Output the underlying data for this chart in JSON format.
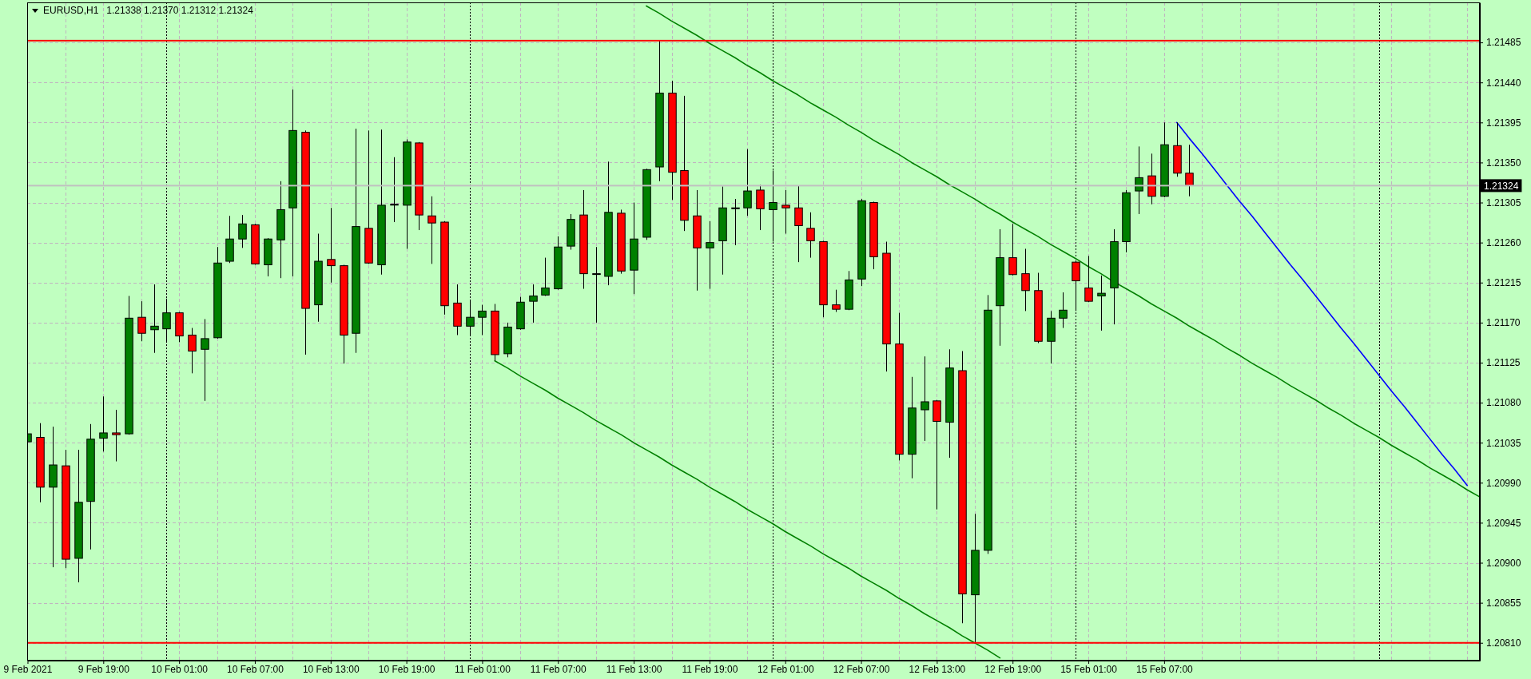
{
  "chart_data": {
    "type": "candlestick",
    "title": "EURUSD,H1",
    "subtitle": "1.21338 1.21370 1.21312 1.21324",
    "categories": [
      "9 Feb 2021",
      null,
      null,
      null,
      null,
      null,
      "9 Feb 19:00",
      null,
      null,
      null,
      null,
      null,
      "10 Feb 01:00",
      null,
      null,
      null,
      null,
      null,
      "10 Feb 07:00",
      null,
      null,
      null,
      null,
      null,
      "10 Feb 13:00",
      null,
      null,
      null,
      null,
      null,
      "10 Feb 19:00",
      null,
      null,
      null,
      null,
      null,
      "11 Feb 01:00",
      null,
      null,
      null,
      null,
      null,
      "11 Feb 07:00",
      null,
      null,
      null,
      null,
      null,
      "11 Feb 13:00",
      null,
      null,
      null,
      null,
      null,
      "11 Feb 19:00",
      null,
      null,
      null,
      null,
      null,
      "12 Feb 01:00",
      null,
      null,
      null,
      null,
      null,
      "12 Feb 07:00",
      null,
      null,
      null,
      null,
      null,
      "12 Feb 13:00",
      null,
      null,
      null,
      null,
      null,
      "12 Feb 19:00",
      null,
      null,
      null,
      null,
      null,
      "15 Feb 01:00",
      null,
      null,
      null,
      null,
      null,
      "15 Feb 07:00",
      null,
      null,
      null,
      null,
      null,
      null,
      null,
      null,
      null,
      null,
      null,
      null,
      null,
      null,
      null,
      null,
      null,
      null,
      null,
      null,
      null,
      null,
      null,
      null,
      null
    ],
    "ohlc": [
      [
        1.21036,
        1.21064,
        1.20972,
        1.21045
      ],
      [
        1.21041,
        1.21057,
        1.20968,
        1.20985
      ],
      [
        1.20985,
        1.21053,
        1.20895,
        1.2101
      ],
      [
        1.21009,
        1.21027,
        1.20894,
        1.20904
      ],
      [
        1.20905,
        1.21027,
        1.20878,
        1.20968
      ],
      [
        1.20969,
        1.21056,
        1.20915,
        1.21039
      ],
      [
        1.2104,
        1.21087,
        1.21025,
        1.21046
      ],
      [
        1.21046,
        1.21072,
        1.21014,
        1.21044
      ],
      [
        1.21045,
        1.212,
        1.21044,
        1.21175
      ],
      [
        1.21176,
        1.21194,
        1.21149,
        1.21158
      ],
      [
        1.21162,
        1.21213,
        1.21136,
        1.21166
      ],
      [
        1.21163,
        1.21197,
        1.21149,
        1.21181
      ],
      [
        1.21181,
        1.21182,
        1.21148,
        1.21155
      ],
      [
        1.21156,
        1.21164,
        1.21113,
        1.21138
      ],
      [
        1.2114,
        1.21174,
        1.21082,
        1.21152
      ],
      [
        1.21153,
        1.21255,
        1.21152,
        1.21237
      ],
      [
        1.21239,
        1.2129,
        1.21237,
        1.21264
      ],
      [
        1.21264,
        1.21291,
        1.21254,
        1.21281
      ],
      [
        1.2128,
        1.21281,
        1.21235,
        1.21236
      ],
      [
        1.21235,
        1.21265,
        1.21222,
        1.21264
      ],
      [
        1.21263,
        1.21329,
        1.2122,
        1.21297
      ],
      [
        1.21299,
        1.21432,
        1.21222,
        1.21386
      ],
      [
        1.21384,
        1.21386,
        1.21134,
        1.21186
      ],
      [
        1.2119,
        1.2127,
        1.21171,
        1.21239
      ],
      [
        1.21241,
        1.21299,
        1.21215,
        1.21234
      ],
      [
        1.21234,
        1.21235,
        1.21124,
        1.21156
      ],
      [
        1.21158,
        1.21388,
        1.21136,
        1.21278
      ],
      [
        1.21276,
        1.21386,
        1.21236,
        1.21237
      ],
      [
        1.21235,
        1.21387,
        1.21224,
        1.21302
      ],
      [
        1.21303,
        1.21356,
        1.21283,
        1.21303
      ],
      [
        1.21302,
        1.21376,
        1.21253,
        1.21373
      ],
      [
        1.21372,
        1.21373,
        1.21274,
        1.21291
      ],
      [
        1.2129,
        1.21312,
        1.21236,
        1.21282
      ],
      [
        1.21283,
        1.21284,
        1.21179,
        1.21189
      ],
      [
        1.21192,
        1.21213,
        1.21156,
        1.21166
      ],
      [
        1.21166,
        1.21196,
        1.21156,
        1.21176
      ],
      [
        1.21176,
        1.2119,
        1.21156,
        1.21183
      ],
      [
        1.21183,
        1.21191,
        1.21127,
        1.21134
      ],
      [
        1.21135,
        1.2117,
        1.21131,
        1.21165
      ],
      [
        1.21163,
        1.21199,
        1.21162,
        1.21193
      ],
      [
        1.21194,
        1.21213,
        1.2117,
        1.212
      ],
      [
        1.21201,
        1.21243,
        1.212,
        1.21209
      ],
      [
        1.21208,
        1.21267,
        1.21207,
        1.21255
      ],
      [
        1.21256,
        1.21292,
        1.21252,
        1.21286
      ],
      [
        1.21291,
        1.21319,
        1.21208,
        1.21225
      ],
      [
        1.21225,
        1.21255,
        1.2117,
        1.21225
      ],
      [
        1.21222,
        1.21351,
        1.21212,
        1.21294
      ],
      [
        1.21293,
        1.21297,
        1.21225,
        1.21228
      ],
      [
        1.21229,
        1.21305,
        1.21202,
        1.21264
      ],
      [
        1.21266,
        1.21343,
        1.21263,
        1.21342
      ],
      [
        1.21345,
        1.21487,
        1.21329,
        1.21428
      ],
      [
        1.21428,
        1.21442,
        1.21308,
        1.21339
      ],
      [
        1.21341,
        1.21425,
        1.21273,
        1.21285
      ],
      [
        1.2129,
        1.21319,
        1.21206,
        1.21254
      ],
      [
        1.21254,
        1.21284,
        1.21208,
        1.2126
      ],
      [
        1.21262,
        1.21323,
        1.21224,
        1.21299
      ],
      [
        1.21299,
        1.21309,
        1.21257,
        1.21299
      ],
      [
        1.21299,
        1.21365,
        1.2129,
        1.21318
      ],
      [
        1.21319,
        1.21325,
        1.21274,
        1.21298
      ],
      [
        1.21297,
        1.21341,
        1.21261,
        1.21305
      ],
      [
        1.21302,
        1.21319,
        1.2127,
        1.21299
      ],
      [
        1.21299,
        1.21324,
        1.21238,
        1.21279
      ],
      [
        1.21276,
        1.21294,
        1.21243,
        1.21262
      ],
      [
        1.21261,
        1.21262,
        1.21176,
        1.2119
      ],
      [
        1.2119,
        1.21207,
        1.21182,
        1.21185
      ],
      [
        1.21185,
        1.21228,
        1.21184,
        1.21218
      ],
      [
        1.21219,
        1.21309,
        1.21211,
        1.21307
      ],
      [
        1.21305,
        1.21306,
        1.2123,
        1.21244
      ],
      [
        1.21248,
        1.21261,
        1.21115,
        1.21146
      ],
      [
        1.21146,
        1.21181,
        1.21015,
        1.21022
      ],
      [
        1.21022,
        1.21109,
        1.20995,
        1.21074
      ],
      [
        1.21072,
        1.21132,
        1.21037,
        1.21081
      ],
      [
        1.21082,
        1.21083,
        1.2096,
        1.21059
      ],
      [
        1.21058,
        1.2114,
        1.21018,
        1.21119
      ],
      [
        1.21116,
        1.21138,
        1.20832,
        1.20865
      ],
      [
        1.20864,
        1.20955,
        1.2081,
        1.20914
      ],
      [
        1.20914,
        1.21201,
        1.2091,
        1.21184
      ],
      [
        1.21189,
        1.21275,
        1.21144,
        1.21243
      ],
      [
        1.21243,
        1.21281,
        1.21223,
        1.21224
      ],
      [
        1.21225,
        1.21253,
        1.21183,
        1.21206
      ],
      [
        1.21206,
        1.21226,
        1.21147,
        1.21149
      ],
      [
        1.21149,
        1.21183,
        1.21124,
        1.21175
      ],
      [
        1.21175,
        1.21204,
        1.21164,
        1.21184
      ],
      [
        1.21238,
        1.2124,
        1.21183,
        1.21217
      ],
      [
        1.21209,
        1.21245,
        1.21193,
        1.21194
      ],
      [
        1.212,
        1.21223,
        1.21161,
        1.21203
      ],
      [
        1.21209,
        1.21275,
        1.21168,
        1.21261
      ],
      [
        1.21261,
        1.21319,
        1.21249,
        1.21316
      ],
      [
        1.21318,
        1.21368,
        1.21292,
        1.21333
      ],
      [
        1.21335,
        1.2136,
        1.21303,
        1.21312
      ],
      [
        1.21312,
        1.21395,
        1.21311,
        1.2137
      ],
      [
        1.21369,
        1.21395,
        1.21334,
        1.21338
      ],
      [
        1.21338,
        1.2137,
        1.21312,
        1.21324
      ],
      null,
      null,
      null,
      null,
      null,
      null,
      null,
      null,
      null,
      null,
      null,
      null,
      null,
      null,
      null,
      null,
      null,
      null,
      null,
      null,
      null,
      null,
      null
    ],
    "colors": [
      "#008000",
      "#ff0000",
      "#008000",
      "#ff0000",
      "#008000",
      "#008000",
      "#008000",
      "#ff0000",
      "#008000",
      "#ff0000",
      "#008000",
      "#008000",
      "#ff0000",
      "#ff0000",
      "#008000",
      "#008000",
      "#008000",
      "#008000",
      "#ff0000",
      "#008000",
      "#008000",
      "#008000",
      "#ff0000",
      "#008000",
      "#ff0000",
      "#ff0000",
      "#008000",
      "#ff0000",
      "#008000",
      "#000000",
      "#008000",
      "#ff0000",
      "#ff0000",
      "#ff0000",
      "#ff0000",
      "#008000",
      "#008000",
      "#ff0000",
      "#008000",
      "#008000",
      "#008000",
      "#008000",
      "#008000",
      "#008000",
      "#ff0000",
      "#000000",
      "#008000",
      "#ff0000",
      "#008000",
      "#008000",
      "#008000",
      "#ff0000",
      "#ff0000",
      "#ff0000",
      "#008000",
      "#008000",
      "#000000",
      "#008000",
      "#ff0000",
      "#008000",
      "#ff0000",
      "#ff0000",
      "#ff0000",
      "#ff0000",
      "#ff0000",
      "#008000",
      "#008000",
      "#ff0000",
      "#ff0000",
      "#ff0000",
      "#008000",
      "#008000",
      "#ff0000",
      "#008000",
      "#ff0000",
      "#008000",
      "#008000",
      "#008000",
      "#ff0000",
      "#ff0000",
      "#ff0000",
      "#008000",
      "#008000",
      "#ff0000",
      "#ff0000",
      "#008000",
      "#008000",
      "#008000",
      "#008000",
      "#ff0000",
      "#008000",
      "#ff0000",
      "#ff0000",
      null,
      null,
      null,
      null,
      null,
      null,
      null,
      null,
      null,
      null,
      null,
      null,
      null,
      null,
      null,
      null,
      null,
      null,
      null,
      null,
      null,
      null,
      null
    ],
    "series": [
      {
        "type": "line",
        "color": "#008000",
        "values": [
          null,
          null,
          null,
          null,
          null,
          null,
          null,
          null,
          null,
          null,
          null,
          null,
          null,
          null,
          null,
          null,
          null,
          null,
          null,
          null,
          null,
          null,
          null,
          null,
          null,
          null,
          null,
          null,
          null,
          null,
          null,
          null,
          null,
          null,
          null,
          null,
          null,
          null,
          null,
          null,
          null,
          null,
          null,
          null,
          null,
          null,
          null,
          null,
          null,
          1.21526,
          1.21518,
          1.21509,
          1.21501,
          1.21493,
          1.21484,
          1.21476,
          1.21468,
          1.21459,
          1.21451,
          1.21442,
          1.21434,
          1.21426,
          1.21417,
          1.21409,
          1.21401,
          1.21392,
          1.21384,
          1.21375,
          1.21367,
          1.21359,
          1.2135,
          1.21342,
          1.21334,
          1.21325,
          1.21317,
          1.21309,
          1.213,
          1.21292,
          1.21283,
          1.21275,
          1.21267,
          1.21258,
          1.2125,
          1.21242,
          1.21233,
          1.21225,
          1.21216,
          1.21208,
          1.212,
          1.21191,
          1.21183,
          1.21175,
          1.21166,
          1.21158,
          1.2115,
          1.21141,
          1.21133,
          1.21124,
          1.21116,
          1.21108,
          1.21099,
          1.21091,
          1.21083,
          1.21074,
          1.21066,
          1.21057,
          1.21049,
          1.21041,
          1.21032,
          1.21024,
          1.21016,
          1.21007,
          1.20999,
          1.20991,
          1.20982,
          1.20974
        ]
      },
      {
        "type": "line",
        "color": "#008000",
        "values": [
          null,
          null,
          null,
          null,
          null,
          null,
          null,
          null,
          null,
          null,
          null,
          null,
          null,
          null,
          null,
          null,
          null,
          null,
          null,
          null,
          null,
          null,
          null,
          null,
          null,
          null,
          null,
          null,
          null,
          null,
          null,
          null,
          null,
          null,
          null,
          null,
          null,
          1.21127,
          1.21119,
          1.2111,
          1.21102,
          1.21094,
          1.21085,
          1.21077,
          1.21069,
          1.2106,
          1.21052,
          1.21044,
          1.21035,
          1.21027,
          1.21019,
          1.2101,
          1.21002,
          1.20994,
          1.20985,
          1.20977,
          1.20969,
          1.2096,
          1.20952,
          1.20944,
          1.20935,
          1.20927,
          1.20919,
          1.2091,
          1.20902,
          1.20894,
          1.20885,
          1.20877,
          1.20869,
          1.2086,
          1.20852,
          1.20843,
          1.20835,
          1.20827,
          1.20818,
          1.2081,
          1.20802,
          1.20793,
          null,
          null,
          null,
          null,
          null,
          null,
          null,
          null,
          null,
          null,
          null,
          null,
          null,
          null,
          null,
          null,
          null,
          null,
          null,
          null,
          null,
          null,
          null,
          null,
          null,
          null,
          null,
          null,
          null,
          null,
          null,
          null,
          null,
          null,
          null,
          null,
          null,
          null
        ]
      },
      {
        "type": "line",
        "color": "#0000ff",
        "values": [
          null,
          null,
          null,
          null,
          null,
          null,
          null,
          null,
          null,
          null,
          null,
          null,
          null,
          null,
          null,
          null,
          null,
          null,
          null,
          null,
          null,
          null,
          null,
          null,
          null,
          null,
          null,
          null,
          null,
          null,
          null,
          null,
          null,
          null,
          null,
          null,
          null,
          null,
          null,
          null,
          null,
          null,
          null,
          null,
          null,
          null,
          null,
          null,
          null,
          null,
          null,
          null,
          null,
          null,
          null,
          null,
          null,
          null,
          null,
          null,
          null,
          null,
          null,
          null,
          null,
          null,
          null,
          null,
          null,
          null,
          null,
          null,
          null,
          null,
          null,
          null,
          null,
          null,
          null,
          null,
          null,
          null,
          null,
          null,
          null,
          null,
          null,
          null,
          null,
          null,
          null,
          1.21395,
          1.21377,
          1.2136,
          1.21342,
          1.21324,
          1.21306,
          1.21289,
          1.21271,
          1.21253,
          1.21235,
          1.21218,
          1.212,
          1.21182,
          1.21164,
          1.21147,
          1.21129,
          1.21111,
          1.21093,
          1.21076,
          1.21058,
          1.2104,
          1.21022,
          1.21005,
          1.20987,
          null
        ]
      }
    ],
    "ylim": [
      1.2079,
      1.2153
    ],
    "yticks": [
      {
        "value": 1.2081,
        "label": "1.20810"
      },
      1.20855,
      {
        "value": 1.209,
        "label": "1.20900"
      },
      1.20945,
      {
        "value": 1.2099,
        "label": "1.20990"
      },
      1.21035,
      {
        "value": 1.2108,
        "label": "1.21080"
      },
      1.21125,
      {
        "value": 1.2117,
        "label": "1.21170"
      },
      1.21215,
      {
        "value": 1.2126,
        "label": "1.21260"
      },
      1.21305,
      {
        "value": 1.2135,
        "label": "1.21350"
      },
      1.21395,
      {
        "value": 1.2144,
        "label": "1.21440"
      },
      1.21485
    ],
    "grid": true,
    "ref_lines": [
      {
        "axis": "y",
        "value": 1.21487,
        "color": "#ff0000"
      },
      {
        "axis": "y",
        "value": 1.2081,
        "color": "#ff0000"
      },
      {
        "axis": "y",
        "value": 1.21324,
        "label": "1.21324",
        "color": "#c0c0c0"
      }
    ]
  }
}
